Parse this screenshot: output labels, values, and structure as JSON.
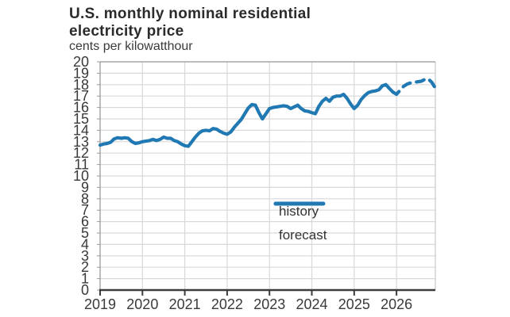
{
  "title_line1": "U.S. monthly nominal residential",
  "title_line2": "electricity price",
  "subtitle": "cents per kilowatthour",
  "legend": {
    "history_label": "history",
    "forecast_label": "forecast"
  },
  "colors": {
    "line": "#2179b4",
    "grid": "#d9d9d9",
    "frame_light": "#9a9a9a",
    "frame_right": "#c9c9c9",
    "axis_dark": "#3c3c3c",
    "text": "#3a3a3a"
  },
  "axes": {
    "x_tick_labels": [
      "2019",
      "2020",
      "2021",
      "2022",
      "2023",
      "2024",
      "2025",
      "2026"
    ],
    "y_tick_labels": [
      "0",
      "1",
      "2",
      "3",
      "4",
      "5",
      "6",
      "7",
      "8",
      "9",
      "10",
      "11",
      "12",
      "13",
      "14",
      "15",
      "16",
      "17",
      "18",
      "19",
      "20"
    ],
    "y_min": 0,
    "y_max": 20,
    "y_step": 1
  },
  "chart_data": {
    "type": "line",
    "title": "U.S. monthly nominal residential electricity price",
    "ylabel": "cents per kilowatthour",
    "xlabel": "",
    "ylim": [
      0,
      20
    ],
    "x_start": "2019-01",
    "x_end": "2026-12",
    "grid": "on",
    "legend_position": "inside lower right",
    "series": [
      {
        "name": "history",
        "style": "solid",
        "start_month_index": 0,
        "start_month": "2019-01",
        "values": [
          12.7,
          12.8,
          12.85,
          12.95,
          13.25,
          13.35,
          13.3,
          13.35,
          13.3,
          13.0,
          12.85,
          12.9,
          13.0,
          13.05,
          13.1,
          13.2,
          13.1,
          13.2,
          13.4,
          13.3,
          13.3,
          13.1,
          13.0,
          12.8,
          12.65,
          12.6,
          13.0,
          13.4,
          13.75,
          13.95,
          14.0,
          13.95,
          14.15,
          14.1,
          13.9,
          13.75,
          13.65,
          13.85,
          14.25,
          14.6,
          14.95,
          15.45,
          15.95,
          16.25,
          16.2,
          15.55,
          15.0,
          15.45,
          15.9,
          16.0,
          16.05,
          16.1,
          16.15,
          16.1,
          15.9,
          16.05,
          16.2,
          15.9,
          15.7,
          15.65,
          15.55,
          15.45,
          16.1,
          16.55,
          16.8,
          16.55,
          16.9,
          17.0,
          17.0,
          17.15,
          16.8,
          16.3,
          15.9,
          16.2,
          16.7,
          17.05,
          17.3,
          17.4,
          17.45,
          17.55,
          17.9,
          18.0,
          17.65,
          17.35
        ]
      },
      {
        "name": "forecast",
        "style": "dashed",
        "start_month_index": 83,
        "start_month": "2025-12",
        "values": [
          17.35,
          17.15,
          17.5,
          17.85,
          18.05,
          18.15,
          18.2,
          18.25,
          18.3,
          18.45,
          18.5,
          18.2,
          17.7
        ]
      }
    ]
  }
}
